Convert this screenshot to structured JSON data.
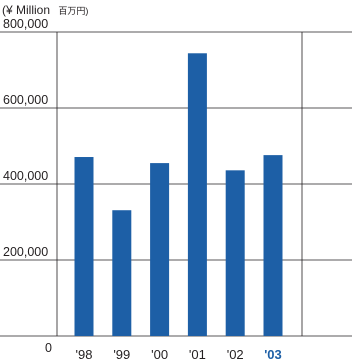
{
  "chart_data": {
    "type": "bar",
    "unit_label": "(¥ Million",
    "unit_label_jp": "百万円)",
    "categories": [
      "'98",
      "'99",
      "'00",
      "'01",
      "'02",
      "'03"
    ],
    "highlight_category": "'03",
    "series": [
      {
        "values": [
          471000,
          331000,
          455000,
          744000,
          436000,
          476000
        ]
      }
    ],
    "y_tick_labels": [
      "800,000",
      "600,000",
      "400,000",
      "200,000",
      "0"
    ],
    "y_ticks": [
      800000,
      600000,
      400000,
      200000,
      0
    ],
    "ylim": [
      0,
      800000
    ],
    "grid": true,
    "bar_color": "#1d5fa6",
    "highlight_color": "#1d5fa6"
  }
}
